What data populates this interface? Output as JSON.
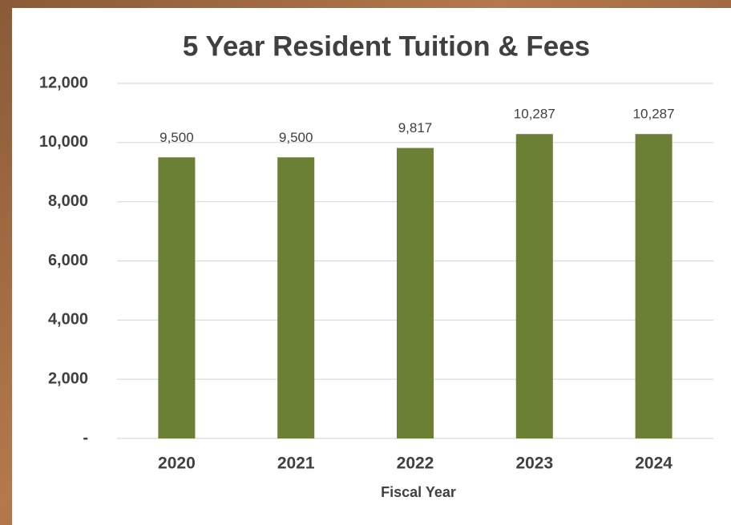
{
  "chart_data": {
    "type": "bar",
    "title": "5 Year Resident Tuition & Fees",
    "x_label": "Fiscal Year",
    "categories": [
      "2020",
      "2021",
      "2022",
      "2023",
      "2024"
    ],
    "values": [
      9500,
      9500,
      9817,
      10287,
      10287
    ],
    "value_labels": [
      "9,500",
      "9,500",
      "9,817",
      "10,287",
      "10,287"
    ],
    "color": "#6b7f35",
    "ylim": [
      0,
      12000
    ],
    "yticks": [
      {
        "value": 0,
        "label": "-"
      },
      {
        "value": 2000,
        "label": "2,000"
      },
      {
        "value": 4000,
        "label": "4,000"
      },
      {
        "value": 6000,
        "label": "6,000"
      },
      {
        "value": 8000,
        "label": "8,000"
      },
      {
        "value": 10000,
        "label": "10,000"
      },
      {
        "value": 12000,
        "label": "12,000"
      }
    ],
    "grid": true
  }
}
